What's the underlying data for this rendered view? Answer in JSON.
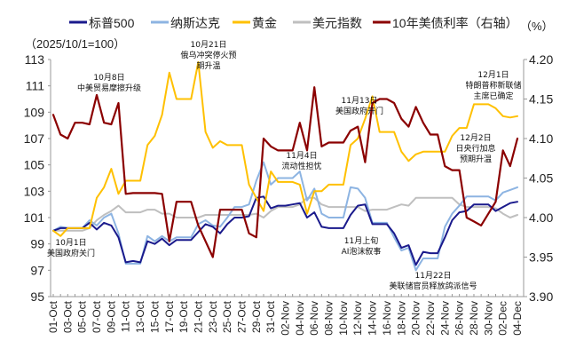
{
  "chart_data": {
    "type": "line",
    "left_unit_label": "（2025/10/1=100）",
    "right_unit_label": "（%）",
    "y_left_ticks": [
      "113",
      "111",
      "109",
      "107",
      "105",
      "103",
      "101",
      "99",
      "97",
      "95"
    ],
    "y_right_ticks": [
      "4.20",
      "4.15",
      "4.10",
      "4.05",
      "4.00",
      "3.95",
      "3.90"
    ],
    "ylim_left": [
      95,
      113
    ],
    "ylim_right": [
      3.9,
      4.2
    ],
    "x_ticks": [
      "01-Oct",
      "03-Oct",
      "05-Oct",
      "07-Oct",
      "09-Oct",
      "11-Oct",
      "13-Oct",
      "15-Oct",
      "17-Oct",
      "19-Oct",
      "21-Oct",
      "23-Oct",
      "25-Oct",
      "27-Oct",
      "29-Oct",
      "31-Oct",
      "02-Nov",
      "04-Nov",
      "06-Nov",
      "08-Nov",
      "10-Nov",
      "12-Nov",
      "14-Nov",
      "16-Nov",
      "18-Nov",
      "20-Nov",
      "22-Nov",
      "24-Nov",
      "26-Nov",
      "28-Nov",
      "30-Nov",
      "02-Dec",
      "04-Dec"
    ],
    "x": [
      "01-Oct",
      "02-Oct",
      "03-Oct",
      "04-Oct",
      "05-Oct",
      "06-Oct",
      "07-Oct",
      "08-Oct",
      "09-Oct",
      "10-Oct",
      "11-Oct",
      "12-Oct",
      "13-Oct",
      "14-Oct",
      "15-Oct",
      "16-Oct",
      "17-Oct",
      "18-Oct",
      "19-Oct",
      "20-Oct",
      "21-Oct",
      "22-Oct",
      "23-Oct",
      "24-Oct",
      "25-Oct",
      "26-Oct",
      "27-Oct",
      "28-Oct",
      "29-Oct",
      "30-Oct",
      "31-Oct",
      "01-Nov",
      "02-Nov",
      "03-Nov",
      "04-Nov",
      "05-Nov",
      "06-Nov",
      "07-Nov",
      "08-Nov",
      "09-Nov",
      "10-Nov",
      "11-Nov",
      "12-Nov",
      "13-Nov",
      "14-Nov",
      "15-Nov",
      "16-Nov",
      "17-Nov",
      "18-Nov",
      "19-Nov",
      "20-Nov",
      "21-Nov",
      "22-Nov",
      "23-Nov",
      "24-Nov",
      "25-Nov",
      "26-Nov",
      "27-Nov",
      "28-Nov",
      "29-Nov",
      "30-Nov",
      "01-Dec",
      "02-Dec",
      "03-Dec",
      "04-Dec"
    ],
    "grid": false,
    "legend_placement": "top",
    "series": [
      {
        "name": "标普500",
        "axis": "left",
        "color": "#1a1a8c",
        "values": [
          100,
          100.2,
          100.2,
          100.2,
          100.2,
          100.6,
          100.1,
          100.6,
          100.4,
          99.5,
          97.6,
          97.7,
          97.6,
          99.2,
          99,
          99.4,
          98.9,
          99.3,
          99.3,
          99.3,
          99.9,
          100.5,
          100.3,
          99.8,
          100.5,
          101,
          101,
          101.1,
          102.5,
          102.6,
          101.7,
          101.9,
          101.9,
          102,
          102.1,
          101,
          101.4,
          100.3,
          100.2,
          100.2,
          100.2,
          101.2,
          101.9,
          102,
          100.5,
          100.5,
          100.5,
          99.8,
          98.7,
          98.9,
          97.4,
          98.4,
          98.3,
          98.3,
          99.5,
          100.8,
          101.4,
          101.5,
          102,
          102,
          102,
          101.5,
          101.8,
          102.1,
          102.2
        ]
      },
      {
        "name": "纳斯达克",
        "axis": "left",
        "color": "#8db4e2",
        "values": [
          100,
          100.3,
          100.2,
          100.2,
          100.2,
          100.8,
          100.4,
          101,
          101.3,
          99.8,
          97.5,
          97.5,
          97.5,
          99.6,
          99.2,
          99.6,
          99.2,
          99.5,
          99.5,
          99.5,
          100.5,
          100.8,
          100.4,
          100.3,
          101,
          101.8,
          101.8,
          102,
          103.8,
          105.2,
          103.5,
          104,
          104,
          104,
          104.5,
          102.3,
          103.2,
          101.3,
          101,
          101,
          101,
          103.3,
          103.2,
          102.5,
          100.6,
          100.6,
          100.6,
          99.5,
          98.5,
          98.7,
          97,
          97.9,
          97.9,
          97.9,
          100.3,
          101.3,
          101.9,
          102.6,
          102.6,
          102.6,
          102.6,
          102.3,
          102.9,
          103.1,
          103.3
        ]
      },
      {
        "name": "黄金",
        "axis": "left",
        "color": "#ffc000",
        "values": [
          100,
          99.6,
          100.2,
          100.2,
          100.2,
          100.2,
          102.5,
          103.3,
          104.7,
          102.8,
          103.8,
          103.8,
          103.8,
          106.5,
          107.2,
          108.8,
          112,
          110,
          110,
          110,
          112.8,
          107.5,
          106.3,
          106.8,
          106.5,
          106.5,
          106.5,
          103.5,
          102.5,
          101.5,
          104.5,
          103.7,
          103.7,
          103.7,
          103.5,
          101.3,
          103,
          103,
          103.5,
          103.5,
          103.5,
          106.5,
          107,
          108.5,
          110.2,
          107.5,
          107.5,
          107.5,
          106,
          105.3,
          105.8,
          106,
          106,
          106,
          106,
          107.2,
          107.8,
          107.8,
          109.6,
          109.6,
          109.6,
          109.3,
          108.7,
          108.6,
          108.7
        ]
      },
      {
        "name": "美元指数",
        "axis": "left",
        "color": "#bfbfbf",
        "values": [
          100,
          100,
          100,
          100,
          100,
          100.2,
          100.8,
          101.2,
          101.5,
          101.9,
          101.4,
          101.4,
          101.4,
          101.6,
          101.6,
          101.3,
          101.3,
          101,
          101,
          101,
          101,
          101.2,
          101.2,
          101.2,
          101.2,
          101.2,
          101.2,
          101.2,
          101.3,
          101,
          101.5,
          101.8,
          101.8,
          101.8,
          102,
          102.5,
          102.5,
          102,
          101.8,
          101.8,
          101.8,
          101.8,
          101.8,
          101.5,
          101.6,
          101.6,
          101.6,
          101.8,
          102,
          101.9,
          102.5,
          102.5,
          102.5,
          102.5,
          102.5,
          102.5,
          102,
          101.8,
          101.8,
          101.8,
          101.8,
          101.7,
          101.3,
          101,
          101.2
        ]
      },
      {
        "name": "10年美债利率（右轴）",
        "axis": "right",
        "color": "#8b0000",
        "values": [
          4.13,
          4.105,
          4.1,
          4.12,
          4.12,
          4.118,
          4.155,
          4.12,
          4.118,
          4.145,
          4.03,
          4.031,
          4.031,
          4.031,
          4.031,
          4.03,
          3.97,
          4.02,
          4.02,
          4.02,
          3.99,
          3.97,
          3.95,
          4.01,
          4.01,
          4.01,
          4.01,
          3.98,
          3.975,
          4.1,
          4.09,
          4.085,
          4.085,
          4.085,
          4.12,
          4.085,
          4.165,
          4.09,
          4.095,
          4.095,
          4.095,
          4.11,
          4.115,
          4.07,
          4.145,
          4.15,
          4.15,
          4.145,
          4.125,
          4.115,
          4.14,
          4.12,
          4.105,
          4.105,
          4.065,
          4.06,
          4.06,
          4,
          3.995,
          3.99,
          4.005,
          4.02,
          4.085,
          4.065,
          4.1
        ]
      }
    ],
    "annotations": [
      {
        "lines": [
          "10月1日",
          "美国政府关门"
        ]
      },
      {
        "lines": [
          "10月8日",
          "中美贸易摩擦升级"
        ]
      },
      {
        "lines": [
          "10月21日",
          "俄乌冲突停火预",
          "期升温"
        ]
      },
      {
        "lines": [
          "11月4日",
          "流动性担忧"
        ]
      },
      {
        "lines": [
          "11月13日",
          "美国政府开门"
        ]
      },
      {
        "lines": [
          "12月1日",
          "特朗普称新联储",
          "主席已确定"
        ]
      },
      {
        "lines": [
          "12月2日",
          "日央行加息",
          "预期升温"
        ]
      },
      {
        "lines": [
          "11月上旬",
          "AI泡沫叙事"
        ]
      },
      {
        "lines": [
          "11月22日",
          "美联储官员释放鸽派信号"
        ]
      }
    ]
  }
}
